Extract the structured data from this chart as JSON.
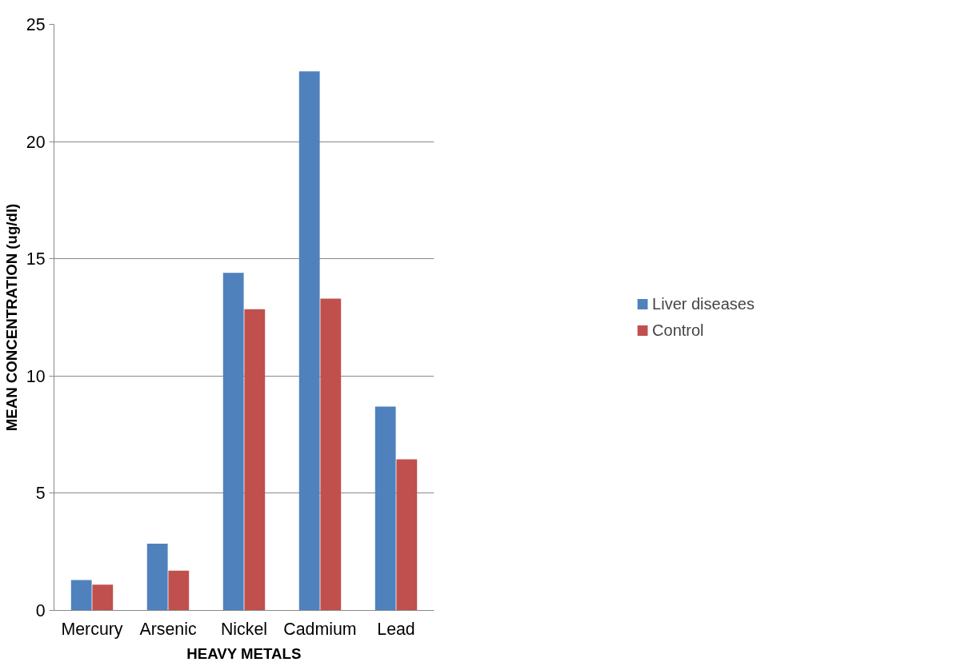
{
  "chart_data": {
    "type": "bar",
    "xlabel": "HEAVY METALS",
    "ylabel": "MEAN CONCENTRATION (ug/dl)",
    "categories": [
      "Mercury",
      "Arsenic",
      "Nickel",
      "Cadmium",
      "Lead"
    ],
    "series": [
      {
        "name": "Liver diseases",
        "color": "#4f81bd",
        "values": [
          1.3,
          2.85,
          14.4,
          23.0,
          8.7
        ]
      },
      {
        "name": "Control",
        "color": "#c0504d",
        "values": [
          1.1,
          1.7,
          12.85,
          13.3,
          6.45
        ]
      }
    ],
    "ylim": [
      0,
      25
    ],
    "yticks": [
      0,
      5,
      10,
      15,
      20,
      25
    ],
    "grid": "y",
    "legend": "right"
  }
}
